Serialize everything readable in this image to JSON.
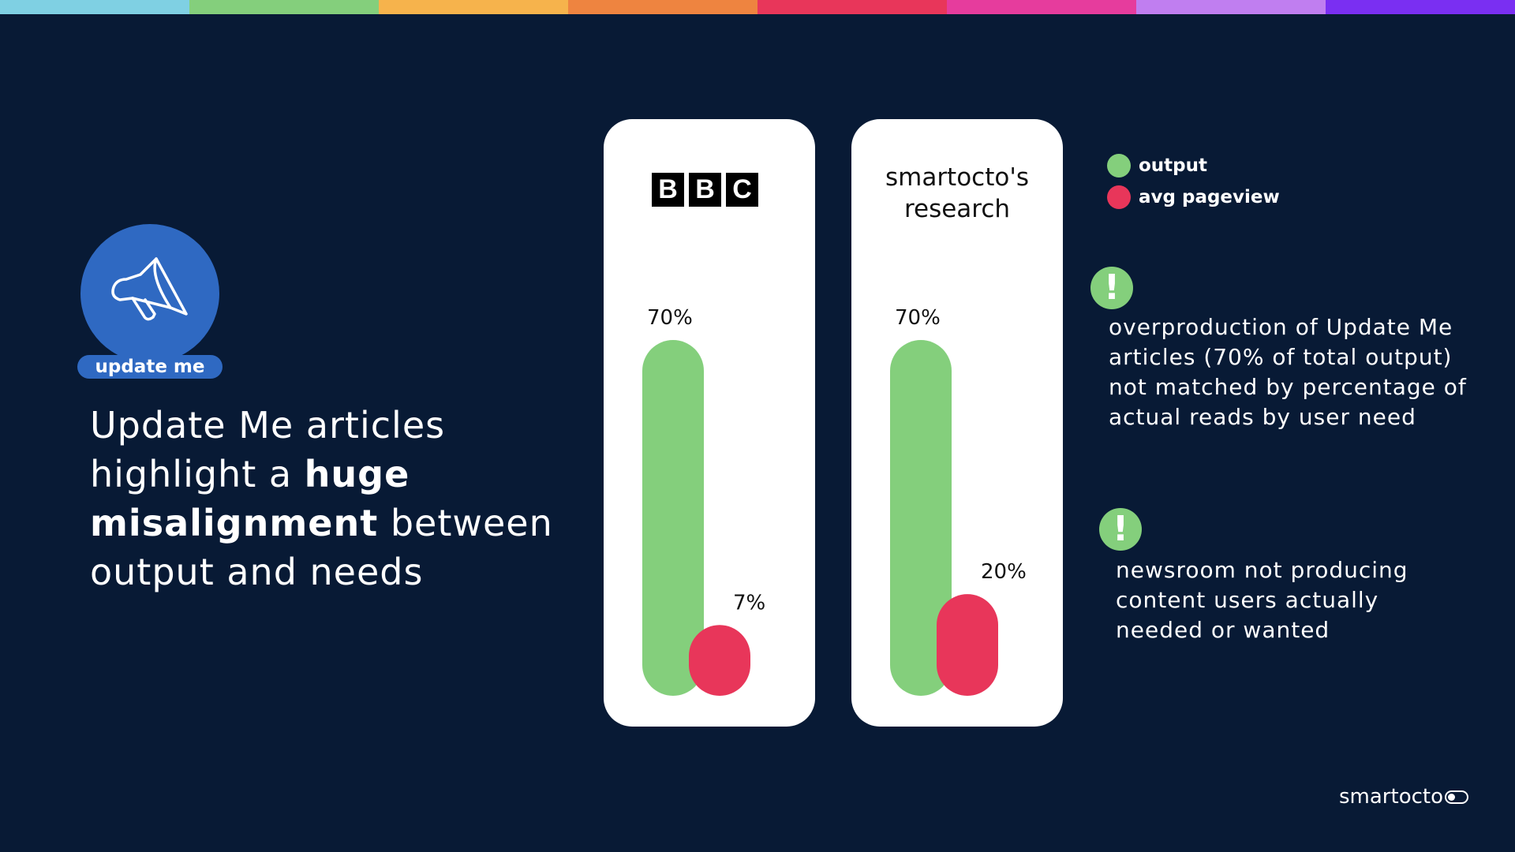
{
  "stripe_colors": [
    "#7fd0e3",
    "#84cf7c",
    "#f6b34c",
    "#ee8440",
    "#e8365a",
    "#e63c9d",
    "#c07ef0",
    "#7a2ff2"
  ],
  "badge": {
    "label": "update me",
    "icon": "megaphone-icon"
  },
  "headline": {
    "part1": "Update Me articles highlight a ",
    "bold1": "huge",
    "space": " ",
    "bold2": "misalignment",
    "part2": " between output and needs"
  },
  "chart_data": [
    {
      "type": "bar",
      "title": "BBC",
      "series": [
        {
          "name": "output",
          "value": 70,
          "label": "70%",
          "color": "#84cf7c"
        },
        {
          "name": "avg pageview",
          "value": 7,
          "label": "7%",
          "color": "#e8365a"
        }
      ]
    },
    {
      "type": "bar",
      "title": "smartocto's research",
      "series": [
        {
          "name": "output",
          "value": 70,
          "label": "70%",
          "color": "#84cf7c"
        },
        {
          "name": "avg pageview",
          "value": 20,
          "label": "20%",
          "color": "#e8365a"
        }
      ]
    }
  ],
  "cards": {
    "bbc": {
      "logo_letters": [
        "B",
        "B",
        "C"
      ]
    },
    "smart": {
      "title_line1": "smartocto's",
      "title_line2": "research"
    }
  },
  "legend": [
    {
      "label": "output",
      "color": "#84cf7c"
    },
    {
      "label": "avg pageview",
      "color": "#e8365a"
    }
  ],
  "notes": [
    {
      "icon": "exclamation-icon",
      "text": "overproduction of Update Me articles (70% of total output) not matched by percentage of actual reads by user need"
    },
    {
      "icon": "exclamation-icon",
      "text": "newsroom not producing content users actually needed or wanted"
    }
  ],
  "brand": {
    "name": "smartocto"
  }
}
